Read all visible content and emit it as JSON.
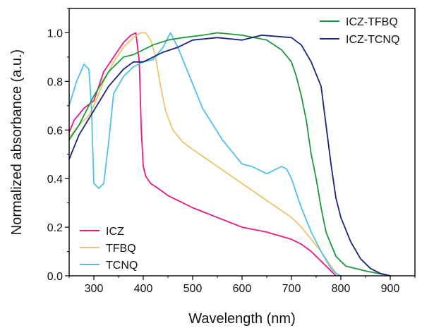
{
  "chart_data": {
    "type": "line",
    "xlabel": "Wavelength (nm)",
    "ylabel": "Normalized absorbance (a.u.)",
    "xlim": [
      250,
      950
    ],
    "ylim": [
      0,
      1.1
    ],
    "x_ticks": [
      300,
      400,
      500,
      600,
      700,
      800,
      900
    ],
    "y_ticks": [
      0.0,
      0.2,
      0.4,
      0.6,
      0.8,
      1.0
    ],
    "x_tick_labels": [
      "300",
      "400",
      "500",
      "600",
      "700",
      "800",
      "900"
    ],
    "y_tick_labels": [
      "0.0",
      "0.2",
      "0.4",
      "0.6",
      "0.8",
      "1.0"
    ],
    "grid": false,
    "legends": [
      {
        "placement": "bottom-left",
        "entries": [
          "ICZ",
          "TFBQ",
          "TCNQ"
        ]
      },
      {
        "placement": "top-right",
        "entries": [
          "ICZ-TFBQ",
          "ICZ-TCNQ"
        ]
      }
    ],
    "series": [
      {
        "name": "ICZ",
        "color": "#e8197f",
        "x": [
          250,
          260,
          280,
          300,
          320,
          340,
          360,
          375,
          385,
          392,
          396,
          400,
          405,
          415,
          430,
          450,
          500,
          550,
          600,
          650,
          700,
          720,
          740,
          760,
          780,
          790
        ],
        "y": [
          0.59,
          0.64,
          0.69,
          0.72,
          0.84,
          0.9,
          0.96,
          0.99,
          1.0,
          0.88,
          0.6,
          0.45,
          0.41,
          0.38,
          0.36,
          0.33,
          0.28,
          0.24,
          0.2,
          0.18,
          0.15,
          0.13,
          0.1,
          0.06,
          0.02,
          0.0
        ]
      },
      {
        "name": "TFBQ",
        "color": "#f0c36b",
        "x": [
          250,
          270,
          290,
          300,
          320,
          340,
          360,
          380,
          395,
          405,
          415,
          425,
          435,
          445,
          460,
          480,
          500,
          550,
          600,
          650,
          700,
          720,
          740,
          760,
          780,
          795
        ],
        "y": [
          0.57,
          0.62,
          0.66,
          0.7,
          0.8,
          0.88,
          0.94,
          0.98,
          1.0,
          1.0,
          0.97,
          0.9,
          0.78,
          0.68,
          0.6,
          0.55,
          0.52,
          0.45,
          0.38,
          0.31,
          0.24,
          0.2,
          0.15,
          0.1,
          0.04,
          0.0
        ]
      },
      {
        "name": "TCNQ",
        "color": "#4fbff0",
        "x": [
          250,
          265,
          280,
          290,
          295,
          300,
          310,
          320,
          330,
          340,
          360,
          380,
          400,
          420,
          440,
          455,
          470,
          490,
          520,
          560,
          600,
          620,
          650,
          680,
          690,
          700,
          710,
          720,
          740,
          760,
          780,
          790,
          800
        ],
        "y": [
          0.7,
          0.8,
          0.87,
          0.85,
          0.7,
          0.38,
          0.36,
          0.38,
          0.55,
          0.75,
          0.82,
          0.86,
          0.88,
          0.89,
          0.94,
          1.0,
          0.94,
          0.84,
          0.69,
          0.56,
          0.46,
          0.45,
          0.42,
          0.45,
          0.44,
          0.4,
          0.34,
          0.28,
          0.18,
          0.1,
          0.03,
          0.01,
          0.0
        ]
      },
      {
        "name": "ICZ-TFBQ",
        "color": "#1a9a3a",
        "x": [
          250,
          270,
          300,
          330,
          360,
          380,
          400,
          420,
          450,
          480,
          520,
          550,
          600,
          650,
          680,
          700,
          710,
          720,
          730,
          740,
          750,
          760,
          770,
          790,
          810,
          850,
          900
        ],
        "y": [
          0.56,
          0.62,
          0.74,
          0.84,
          0.9,
          0.91,
          0.93,
          0.95,
          0.97,
          0.98,
          0.99,
          1.0,
          0.99,
          0.97,
          0.93,
          0.88,
          0.82,
          0.74,
          0.64,
          0.5,
          0.4,
          0.28,
          0.18,
          0.08,
          0.04,
          0.02,
          0.0
        ]
      },
      {
        "name": "ICZ-TCNQ",
        "color": "#1a237e",
        "x": [
          250,
          270,
          300,
          330,
          360,
          380,
          400,
          420,
          440,
          470,
          500,
          550,
          600,
          640,
          700,
          720,
          740,
          760,
          770,
          780,
          790,
          800,
          820,
          840,
          860,
          880,
          900
        ],
        "y": [
          0.48,
          0.58,
          0.68,
          0.78,
          0.85,
          0.88,
          0.88,
          0.9,
          0.92,
          0.94,
          0.97,
          0.98,
          0.97,
          0.99,
          0.98,
          0.95,
          0.88,
          0.78,
          0.62,
          0.46,
          0.32,
          0.24,
          0.14,
          0.07,
          0.03,
          0.01,
          0.0
        ]
      }
    ]
  }
}
